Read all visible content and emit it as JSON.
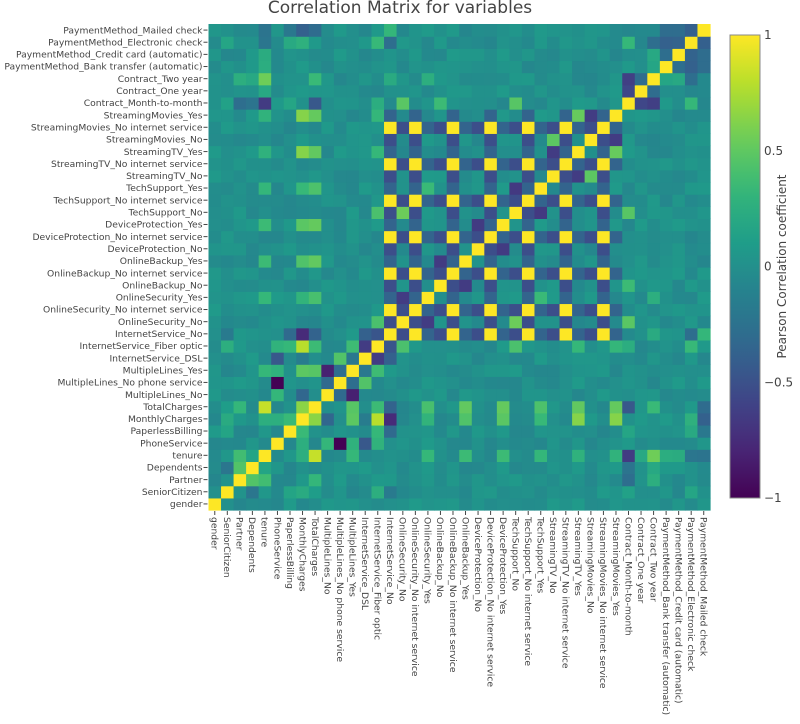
{
  "chart_data": {
    "type": "heatmap",
    "title": "Correlation Matrix for variables",
    "xlabel": "",
    "ylabel": "",
    "colorbar": {
      "title": "Pearson Correlation coefficient",
      "range": [
        -1,
        1
      ],
      "ticks": [
        1,
        0.5,
        0,
        -0.5,
        -1
      ],
      "tick_labels": [
        "1",
        "0.5",
        "0",
        "−0.5",
        "−1"
      ],
      "colorscale": "viridis"
    },
    "variables": [
      "gender",
      "SeniorCitizen",
      "Partner",
      "Dependents",
      "tenure",
      "PhoneService",
      "PaperlessBilling",
      "MonthlyCharges",
      "TotalCharges",
      "MultipleLines_No",
      "MultipleLines_No phone service",
      "MultipleLines_Yes",
      "InternetService_DSL",
      "InternetService_Fiber optic",
      "InternetService_No",
      "OnlineSecurity_No",
      "OnlineSecurity_No internet service",
      "OnlineSecurity_Yes",
      "OnlineBackup_No",
      "OnlineBackup_No internet service",
      "OnlineBackup_Yes",
      "DeviceProtection_No",
      "DeviceProtection_No internet service",
      "DeviceProtection_Yes",
      "TechSupport_No",
      "TechSupport_No internet service",
      "TechSupport_Yes",
      "StreamingTV_No",
      "StreamingTV_No internet service",
      "StreamingTV_Yes",
      "StreamingMovies_No",
      "StreamingMovies_No internet service",
      "StreamingMovies_Yes",
      "Contract_Month-to-month",
      "Contract_One year",
      "Contract_Two year",
      "PaymentMethod_Bank transfer (automatic)",
      "PaymentMethod_Credit card (automatic)",
      "PaymentMethod_Electronic check",
      "PaymentMethod_Mailed check"
    ],
    "approx_pairs": [
      [
        "gender",
        "SeniorCitizen",
        0.0
      ],
      [
        "SeniorCitizen",
        "Partner",
        0.02
      ],
      [
        "SeniorCitizen",
        "Dependents",
        -0.21
      ],
      [
        "SeniorCitizen",
        "PaperlessBilling",
        0.16
      ],
      [
        "SeniorCitizen",
        "MonthlyCharges",
        0.22
      ],
      [
        "SeniorCitizen",
        "TotalCharges",
        0.1
      ],
      [
        "SeniorCitizen",
        "InternetService_Fiber optic",
        0.25
      ],
      [
        "SeniorCitizen",
        "InternetService_No",
        -0.18
      ],
      [
        "SeniorCitizen",
        "Contract_Month-to-month",
        0.14
      ],
      [
        "SeniorCitizen",
        "PaymentMethod_Electronic check",
        0.17
      ],
      [
        "Partner",
        "Dependents",
        0.45
      ],
      [
        "Partner",
        "tenure",
        0.38
      ],
      [
        "Partner",
        "TotalCharges",
        0.32
      ],
      [
        "Partner",
        "Contract_Month-to-month",
        -0.28
      ],
      [
        "Partner",
        "Contract_Two year",
        0.25
      ],
      [
        "Dependents",
        "tenure",
        0.16
      ],
      [
        "Dependents",
        "Contract_Two year",
        0.2
      ],
      [
        "Dependents",
        "Contract_Month-to-month",
        -0.23
      ],
      [
        "tenure",
        "TotalCharges",
        0.83
      ],
      [
        "tenure",
        "MonthlyCharges",
        0.25
      ],
      [
        "tenure",
        "MultipleLines_Yes",
        0.33
      ],
      [
        "tenure",
        "Contract_Month-to-month",
        -0.65
      ],
      [
        "tenure",
        "Contract_Two year",
        0.56
      ],
      [
        "tenure",
        "Contract_One year",
        0.2
      ],
      [
        "tenure",
        "OnlineSecurity_Yes",
        0.33
      ],
      [
        "tenure",
        "OnlineBackup_Yes",
        0.36
      ],
      [
        "tenure",
        "DeviceProtection_Yes",
        0.36
      ],
      [
        "tenure",
        "TechSupport_Yes",
        0.32
      ],
      [
        "tenure",
        "StreamingTV_Yes",
        0.28
      ],
      [
        "tenure",
        "StreamingMovies_Yes",
        0.29
      ],
      [
        "tenure",
        "PaymentMethod_Electronic check",
        -0.21
      ],
      [
        "tenure",
        "PaymentMethod_Bank transfer (automatic)",
        0.24
      ],
      [
        "tenure",
        "PaymentMethod_Credit card (automatic)",
        0.23
      ],
      [
        "tenure",
        "PaymentMethod_Mailed check",
        -0.23
      ],
      [
        "PhoneService",
        "MultipleLines_No phone service",
        -1.0
      ],
      [
        "PhoneService",
        "MultipleLines_Yes",
        0.28
      ],
      [
        "PhoneService",
        "MultipleLines_No",
        0.32
      ],
      [
        "PhoneService",
        "MonthlyCharges",
        0.25
      ],
      [
        "PhoneService",
        "InternetService_DSL",
        -0.45
      ],
      [
        "PhoneService",
        "InternetService_Fiber optic",
        0.29
      ],
      [
        "PaperlessBilling",
        "MonthlyCharges",
        0.35
      ],
      [
        "PaperlessBilling",
        "InternetService_Fiber optic",
        0.33
      ],
      [
        "PaperlessBilling",
        "InternetService_No",
        -0.32
      ],
      [
        "PaperlessBilling",
        "Contract_Month-to-month",
        0.17
      ],
      [
        "PaperlessBilling",
        "PaymentMethod_Electronic check",
        0.21
      ],
      [
        "PaperlessBilling",
        "PaymentMethod_Mailed check",
        -0.2
      ],
      [
        "MonthlyCharges",
        "TotalCharges",
        0.65
      ],
      [
        "MonthlyCharges",
        "InternetService_Fiber optic",
        0.79
      ],
      [
        "MonthlyCharges",
        "InternetService_No",
        -0.76
      ],
      [
        "MonthlyCharges",
        "InternetService_DSL",
        -0.16
      ],
      [
        "MonthlyCharges",
        "MultipleLines_Yes",
        0.49
      ],
      [
        "MonthlyCharges",
        "MultipleLines_No",
        -0.34
      ],
      [
        "MonthlyCharges",
        "StreamingTV_Yes",
        0.63
      ],
      [
        "MonthlyCharges",
        "StreamingMovies_Yes",
        0.63
      ],
      [
        "MonthlyCharges",
        "DeviceProtection_Yes",
        0.48
      ],
      [
        "MonthlyCharges",
        "OnlineBackup_Yes",
        0.44
      ],
      [
        "MonthlyCharges",
        "TechSupport_Yes",
        0.34
      ],
      [
        "MonthlyCharges",
        "OnlineSecurity_Yes",
        0.3
      ],
      [
        "MonthlyCharges",
        "PaymentMethod_Electronic check",
        0.27
      ],
      [
        "MonthlyCharges",
        "PaymentMethod_Mailed check",
        -0.38
      ],
      [
        "TotalCharges",
        "MultipleLines_Yes",
        0.47
      ],
      [
        "TotalCharges",
        "InternetService_Fiber optic",
        0.36
      ],
      [
        "TotalCharges",
        "InternetService_No",
        -0.37
      ],
      [
        "TotalCharges",
        "StreamingTV_Yes",
        0.51
      ],
      [
        "TotalCharges",
        "StreamingMovies_Yes",
        0.52
      ],
      [
        "TotalCharges",
        "DeviceProtection_Yes",
        0.52
      ],
      [
        "TotalCharges",
        "OnlineBackup_Yes",
        0.51
      ],
      [
        "TotalCharges",
        "TechSupport_Yes",
        0.43
      ],
      [
        "TotalCharges",
        "OnlineSecurity_Yes",
        0.41
      ],
      [
        "TotalCharges",
        "Contract_Month-to-month",
        -0.45
      ],
      [
        "TotalCharges",
        "Contract_Two year",
        0.35
      ],
      [
        "TotalCharges",
        "PaymentMethod_Mailed check",
        -0.3
      ],
      [
        "MultipleLines_No",
        "MultipleLines_Yes",
        -0.82
      ],
      [
        "MultipleLines_No",
        "MultipleLines_No phone service",
        -0.32
      ],
      [
        "MultipleLines_No phone service",
        "MultipleLines_Yes",
        -0.28
      ],
      [
        "MultipleLines_No phone service",
        "InternetService_DSL",
        0.45
      ],
      [
        "MultipleLines_Yes",
        "InternetService_Fiber optic",
        0.37
      ],
      [
        "MultipleLines_Yes",
        "InternetService_DSL",
        -0.2
      ],
      [
        "InternetService_DSL",
        "InternetService_Fiber optic",
        -0.64
      ],
      [
        "InternetService_DSL",
        "InternetService_No",
        -0.38
      ],
      [
        "InternetService_Fiber optic",
        "InternetService_No",
        -0.47
      ],
      [
        "InternetService_Fiber optic",
        "Contract_Month-to-month",
        0.24
      ],
      [
        "InternetService_Fiber optic",
        "PaymentMethod_Electronic check",
        0.34
      ],
      [
        "InternetService_Fiber optic",
        "StreamingTV_Yes",
        0.33
      ],
      [
        "InternetService_Fiber optic",
        "StreamingMovies_Yes",
        0.32
      ],
      [
        "InternetService_Fiber optic",
        "OnlineSecurity_No",
        0.42
      ],
      [
        "InternetService_Fiber optic",
        "TechSupport_No",
        0.42
      ],
      [
        "InternetService_No",
        "OnlineSecurity_No internet service",
        1.0
      ],
      [
        "InternetService_No",
        "OnlineBackup_No internet service",
        1.0
      ],
      [
        "InternetService_No",
        "DeviceProtection_No internet service",
        1.0
      ],
      [
        "InternetService_No",
        "TechSupport_No internet service",
        1.0
      ],
      [
        "InternetService_No",
        "StreamingTV_No internet service",
        1.0
      ],
      [
        "InternetService_No",
        "StreamingMovies_No internet service",
        1.0
      ],
      [
        "InternetService_No",
        "OnlineSecurity_No",
        -0.53
      ],
      [
        "InternetService_No",
        "Contract_Two year",
        0.22
      ],
      [
        "InternetService_No",
        "PaymentMethod_Mailed check",
        0.32
      ],
      [
        "InternetService_No",
        "PaymentMethod_Electronic check",
        -0.28
      ],
      [
        "OnlineSecurity_No",
        "OnlineSecurity_Yes",
        -0.64
      ],
      [
        "OnlineSecurity_No",
        "Contract_Month-to-month",
        0.48
      ],
      [
        "OnlineSecurity_No",
        "TechSupport_No",
        0.55
      ],
      [
        "OnlineSecurity_Yes",
        "TechSupport_Yes",
        0.35
      ],
      [
        "OnlineSecurity_Yes",
        "Contract_Two year",
        0.25
      ],
      [
        "OnlineBackup_No",
        "OnlineBackup_Yes",
        -0.65
      ],
      [
        "OnlineBackup_No",
        "Contract_Month-to-month",
        0.36
      ],
      [
        "DeviceProtection_No",
        "DeviceProtection_Yes",
        -0.65
      ],
      [
        "TechSupport_No",
        "TechSupport_Yes",
        -0.66
      ],
      [
        "TechSupport_No",
        "Contract_Month-to-month",
        0.47
      ],
      [
        "StreamingTV_No",
        "StreamingTV_Yes",
        -0.64
      ],
      [
        "StreamingTV_Yes",
        "StreamingMovies_Yes",
        0.53
      ],
      [
        "StreamingTV_No",
        "StreamingMovies_No",
        0.49
      ],
      [
        "StreamingMovies_No",
        "StreamingMovies_Yes",
        -0.64
      ],
      [
        "Contract_Month-to-month",
        "Contract_One year",
        -0.57
      ],
      [
        "Contract_Month-to-month",
        "Contract_Two year",
        -0.62
      ],
      [
        "Contract_One year",
        "Contract_Two year",
        -0.29
      ],
      [
        "Contract_Month-to-month",
        "PaymentMethod_Electronic check",
        0.33
      ],
      [
        "Contract_Two year",
        "PaymentMethod_Bank transfer (automatic)",
        0.17
      ],
      [
        "Contract_Two year",
        "PaymentMethod_Credit card (automatic)",
        0.2
      ],
      [
        "Contract_Two year",
        "PaymentMethod_Electronic check",
        -0.28
      ],
      [
        "PaymentMethod_Bank transfer (automatic)",
        "PaymentMethod_Credit card (automatic)",
        -0.28
      ],
      [
        "PaymentMethod_Bank transfer (automatic)",
        "PaymentMethod_Electronic check",
        -0.38
      ],
      [
        "PaymentMethod_Bank transfer (automatic)",
        "PaymentMethod_Mailed check",
        -0.29
      ],
      [
        "PaymentMethod_Credit card (automatic)",
        "PaymentMethod_Electronic check",
        -0.37
      ],
      [
        "PaymentMethod_Credit card (automatic)",
        "PaymentMethod_Mailed check",
        -0.29
      ],
      [
        "PaymentMethod_Electronic check",
        "PaymentMethod_Mailed check",
        -0.39
      ]
    ],
    "diagonal": 1.0
  }
}
